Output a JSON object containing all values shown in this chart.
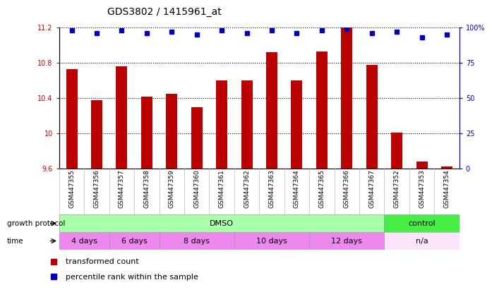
{
  "title": "GDS3802 / 1415961_at",
  "samples": [
    "GSM447355",
    "GSM447356",
    "GSM447357",
    "GSM447358",
    "GSM447359",
    "GSM447360",
    "GSM447361",
    "GSM447362",
    "GSM447363",
    "GSM447364",
    "GSM447365",
    "GSM447366",
    "GSM447367",
    "GSM447352",
    "GSM447353",
    "GSM447354"
  ],
  "red_values": [
    10.73,
    10.38,
    10.76,
    10.42,
    10.45,
    10.3,
    10.6,
    10.6,
    10.92,
    10.6,
    10.93,
    11.2,
    10.78,
    10.01,
    9.68,
    9.62
  ],
  "blue_values": [
    98,
    96,
    98,
    96,
    97,
    95,
    98,
    96,
    98,
    96,
    98,
    99,
    96,
    97,
    93,
    95
  ],
  "ylim_left": [
    9.6,
    11.2
  ],
  "ylim_right": [
    0,
    100
  ],
  "yticks_left": [
    9.6,
    10.0,
    10.4,
    10.8,
    11.2
  ],
  "ytick_labels_left": [
    "9.6",
    "10",
    "10.4",
    "10.8",
    "11.2"
  ],
  "yticks_right": [
    0,
    25,
    50,
    75,
    100
  ],
  "ytick_labels_right": [
    "0",
    "25",
    "50",
    "75",
    "100%"
  ],
  "bar_color": "#bb0000",
  "dot_color": "#0000bb",
  "title_fontsize": 10,
  "tick_fontsize": 7,
  "label_fontsize": 8,
  "growth_protocol_label": "growth protocol",
  "time_label": "time",
  "dmso_color": "#aaffaa",
  "control_color": "#44ee44",
  "time_color_alt": "#ee88ee",
  "time_color_white": "#ffeeee",
  "legend_items": [
    {
      "label": "transformed count",
      "color": "#bb0000"
    },
    {
      "label": "percentile rank within the sample",
      "color": "#0000bb"
    }
  ],
  "time_groups": [
    {
      "label": "4 days",
      "xstart": -0.5,
      "xend": 1.5
    },
    {
      "label": "6 days",
      "xstart": 1.5,
      "xend": 3.5
    },
    {
      "label": "8 days",
      "xstart": 3.5,
      "xend": 6.5
    },
    {
      "label": "10 days",
      "xstart": 6.5,
      "xend": 9.5
    },
    {
      "label": "12 days",
      "xstart": 9.5,
      "xend": 12.5
    },
    {
      "label": "n/a",
      "xstart": 12.5,
      "xend": 15.5
    }
  ]
}
